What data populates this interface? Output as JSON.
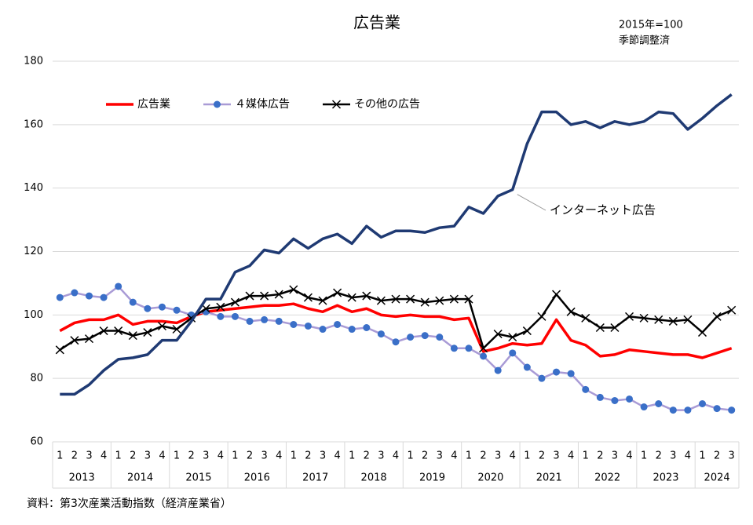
{
  "chart_data": {
    "type": "line",
    "title": "広告業",
    "subtitle": [
      "2015年=100",
      "季節調整済"
    ],
    "source": "資料：第3次産業活動指数（経済産業省）",
    "categories": [
      "1",
      "2",
      "3",
      "4",
      "1",
      "2",
      "3",
      "4",
      "1",
      "2",
      "3",
      "4",
      "1",
      "2",
      "3",
      "4",
      "1",
      "2",
      "3",
      "4",
      "1",
      "2",
      "3",
      "4",
      "1",
      "2",
      "3",
      "4",
      "1",
      "2",
      "3",
      "4",
      "1",
      "2",
      "3",
      "4",
      "1",
      "2",
      "3",
      "4",
      "1",
      "2",
      "3",
      "4",
      "1",
      "2",
      "3"
    ],
    "years": [
      "2013",
      "2014",
      "2015",
      "2016",
      "2017",
      "2018",
      "2019",
      "2020",
      "2021",
      "2022",
      "2023",
      "2024"
    ],
    "ylim": [
      60,
      180
    ],
    "yticks": [
      60,
      80,
      100,
      120,
      140,
      160,
      180
    ],
    "grid": true,
    "series": [
      {
        "name": "広告業",
        "color": "#ff0000",
        "marker": "none",
        "legend": true,
        "values": [
          95,
          97.5,
          98.5,
          98.5,
          100,
          97,
          98,
          98,
          97.5,
          99.5,
          101,
          101.5,
          102,
          102.5,
          103,
          103,
          103.5,
          102,
          101,
          103,
          101,
          102,
          100,
          99.5,
          100,
          99.5,
          99.5,
          98.5,
          99,
          88.5,
          89.5,
          91,
          90.5,
          91,
          98.5,
          92,
          90.5,
          87,
          87.5,
          89,
          88.5,
          88,
          87.5,
          87.5,
          86.5,
          88,
          89.5
        ]
      },
      {
        "name": "４媒体広告",
        "color": "#a99bd6",
        "marker_color": "#3a6fc8",
        "marker": "circle",
        "legend": true,
        "values": [
          105.5,
          107,
          106,
          105.5,
          109,
          104,
          102,
          102.5,
          101.5,
          100,
          101,
          99.5,
          99.5,
          98,
          98.5,
          98,
          97,
          96.5,
          95.5,
          97,
          95.5,
          96,
          94,
          91.5,
          93,
          93.5,
          93,
          89.5,
          89.5,
          87,
          82.5,
          88,
          83.5,
          80,
          82,
          81.5,
          76.5,
          74,
          73,
          73.5,
          71,
          72,
          70,
          70,
          72,
          70.5,
          70
        ]
      },
      {
        "name": "その他の広告",
        "color": "#000000",
        "marker": "x",
        "legend": true,
        "values": [
          89,
          92,
          92.5,
          95,
          95,
          93.5,
          94.5,
          96.5,
          95.5,
          99,
          102,
          102.5,
          104,
          106,
          106,
          106.5,
          108,
          105.5,
          104.5,
          107,
          105.5,
          106,
          104.5,
          105,
          105,
          104,
          104.5,
          105,
          105,
          89.5,
          94,
          93,
          95,
          99.5,
          106.5,
          101,
          99,
          96,
          96,
          99.5,
          99,
          98.5,
          98,
          98.5,
          94.5,
          99.5,
          101.5
        ]
      },
      {
        "name": "インターネット広告",
        "color": "#1f3a73",
        "marker": "none",
        "legend": false,
        "values": [
          75,
          75,
          78,
          82.5,
          86,
          86.5,
          87.5,
          92,
          92,
          98,
          105,
          105,
          113.5,
          115.5,
          120.5,
          119.5,
          124,
          121,
          124,
          125.5,
          122.5,
          128,
          124.5,
          126.5,
          126.5,
          126,
          127.5,
          128,
          134,
          132,
          137.5,
          139.5,
          154,
          164,
          164,
          160,
          161,
          159,
          161,
          160,
          161,
          164,
          163.5,
          158.5,
          162,
          166,
          169.5
        ]
      }
    ]
  }
}
